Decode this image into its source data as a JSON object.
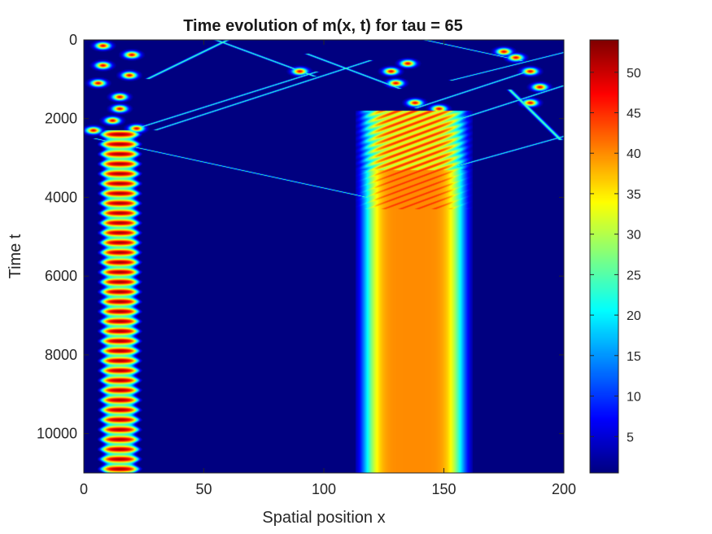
{
  "chart_data": {
    "type": "heatmap",
    "title": "Time evolution of m(x, t) for tau = 65",
    "xlabel": "Spatial position x",
    "ylabel": "Time t",
    "xlim": [
      0,
      200
    ],
    "ylim": [
      0,
      11000
    ],
    "y_reversed": true,
    "xticks": [
      0,
      50,
      100,
      150,
      200
    ],
    "yticks": [
      0,
      2000,
      4000,
      6000,
      8000,
      10000
    ],
    "colormap": "jet",
    "colorbar": {
      "range": [
        0.5,
        54
      ],
      "ticks": [
        5,
        10,
        15,
        20,
        25,
        30,
        35,
        40,
        45,
        50
      ]
    },
    "background_value": 0.5,
    "features": [
      {
        "kind": "oscillating_column",
        "x_center": 15,
        "half_width": 6,
        "t_start": 2400,
        "t_end": 11000,
        "period": 250,
        "min_value": 25,
        "max_value": 52
      },
      {
        "kind": "solid_band",
        "x_start": 118,
        "x_end": 157,
        "t_start": 3300,
        "t_end": 11000,
        "value": 40
      },
      {
        "kind": "ripple_region",
        "x_start": 118,
        "x_end": 157,
        "t_start": 1800,
        "t_end": 4300,
        "min_value": 30,
        "max_value": 45
      },
      {
        "kind": "trace",
        "x0": 8,
        "t0": 2550,
        "x1": 118,
        "t1": 4000,
        "value": 25
      },
      {
        "kind": "trace",
        "x0": 22,
        "t0": 2250,
        "x1": 95,
        "t1": 850,
        "value": 25
      },
      {
        "kind": "trace",
        "x0": 32,
        "t0": 2250,
        "x1": 118,
        "t1": 550,
        "value": 25
      },
      {
        "kind": "trace",
        "x0": 28,
        "t0": 950,
        "x1": 60,
        "t1": 0,
        "value": 25
      },
      {
        "kind": "trace",
        "x0": 55,
        "t0": 0,
        "x1": 95,
        "t1": 900,
        "value": 25
      },
      {
        "kind": "trace",
        "x0": 95,
        "t0": 400,
        "x1": 130,
        "t1": 1200,
        "value": 25
      },
      {
        "kind": "trace",
        "x0": 150,
        "t0": 3300,
        "x1": 200,
        "t1": 2450,
        "value": 25
      },
      {
        "kind": "trace",
        "x0": 147,
        "t0": 2200,
        "x1": 198,
        "t1": 1200,
        "value": 25
      },
      {
        "kind": "trace",
        "x0": 140,
        "t0": 1700,
        "x1": 185,
        "t1": 800,
        "value": 25
      },
      {
        "kind": "trace",
        "x0": 142,
        "t0": 0,
        "x1": 180,
        "t1": 500,
        "value": 25
      },
      {
        "kind": "trace",
        "x0": 155,
        "t0": 1000,
        "x1": 198,
        "t1": 350,
        "value": 25
      },
      {
        "kind": "trace",
        "x0": 178,
        "t0": 1300,
        "x1": 198,
        "t1": 2500,
        "value": 25
      },
      {
        "kind": "blobs",
        "points": [
          [
            8,
            150
          ],
          [
            20,
            380
          ],
          [
            8,
            650
          ],
          [
            19,
            900
          ],
          [
            6,
            1100
          ],
          [
            15,
            1450
          ],
          [
            15,
            1750
          ],
          [
            12,
            2050
          ],
          [
            22,
            2250
          ],
          [
            4,
            2300
          ],
          [
            90,
            800
          ],
          [
            128,
            800
          ],
          [
            130,
            1100
          ],
          [
            138,
            1600
          ],
          [
            148,
            1750
          ],
          [
            135,
            600
          ],
          [
            180,
            450
          ],
          [
            186,
            800
          ],
          [
            190,
            1200
          ],
          [
            186,
            1600
          ],
          [
            175,
            300
          ]
        ],
        "value": 48
      }
    ]
  }
}
